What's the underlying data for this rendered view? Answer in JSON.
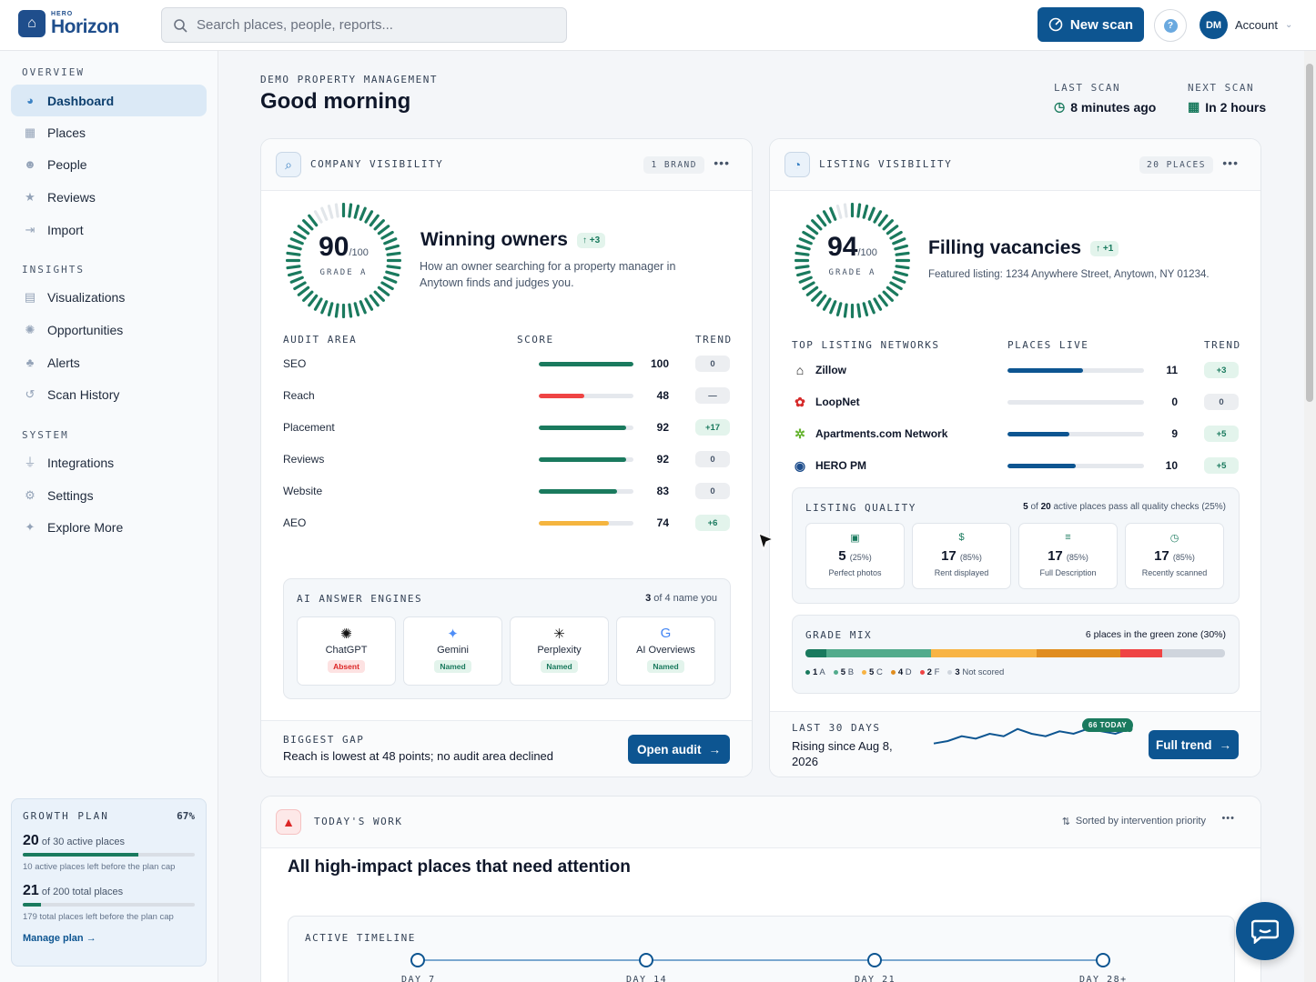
{
  "app": {
    "brand_small": "HERO",
    "brand_big": "Horizon"
  },
  "search": {
    "placeholder": "Search places, people, reports..."
  },
  "header": {
    "new_scan": "New scan",
    "help": "?",
    "avatar": "DM",
    "account": "Account"
  },
  "sidebar": {
    "sections": {
      "overview": "OVERVIEW",
      "insights": "INSIGHTS",
      "system": "SYSTEM"
    },
    "items": {
      "dashboard": "Dashboard",
      "places": "Places",
      "people": "People",
      "reviews": "Reviews",
      "import": "Import",
      "visualizations": "Visualizations",
      "opportunities": "Opportunities",
      "alerts": "Alerts",
      "scan_history": "Scan History",
      "integrations": "Integrations",
      "settings": "Settings",
      "explore_more": "Explore More"
    },
    "growth": {
      "title": "GROWTH PLAN",
      "percent": "67%",
      "active_num": "20",
      "active_text": "of 30 active places",
      "active_fill": 0.67,
      "active_sub": "10 active places left before the plan cap",
      "total_num": "21",
      "total_text": "of 200 total places",
      "total_fill": 0.105,
      "total_sub": "179 total places left before the plan cap",
      "manage": "Manage plan"
    }
  },
  "page": {
    "crumb": "DEMO PROPERTY MANAGEMENT",
    "greeting": "Good morning",
    "last_scan_label": "LAST SCAN",
    "last_scan_value": "8 minutes ago",
    "next_scan_label": "NEXT SCAN",
    "next_scan_value": "In 2 hours"
  },
  "company": {
    "title": "COMPANY VISIBILITY",
    "badge": "1 BRAND",
    "score": "90",
    "of": "/100",
    "grade": "GRADE A",
    "ring_fill": 0.9,
    "headline": "Winning owners",
    "delta": "+3",
    "desc": "How an owner searching for a property manager in Anytown finds and judges you.",
    "col_area": "AUDIT AREA",
    "col_score": "SCORE",
    "col_trend": "TREND",
    "areas": [
      {
        "label": "SEO",
        "value": 100,
        "trend": "0",
        "color": "#1a7a5e",
        "pos": false
      },
      {
        "label": "Reach",
        "value": 48,
        "trend": "—",
        "color": "#ef4444",
        "pos": false
      },
      {
        "label": "Placement",
        "value": 92,
        "trend": "+17",
        "color": "#1a7a5e",
        "pos": true
      },
      {
        "label": "Reviews",
        "value": 92,
        "trend": "0",
        "color": "#1a7a5e",
        "pos": false
      },
      {
        "label": "Website",
        "value": 83,
        "trend": "0",
        "color": "#1a7a5e",
        "pos": false
      },
      {
        "label": "AEO",
        "value": 74,
        "trend": "+6",
        "color": "#f5b53f",
        "pos": true
      }
    ],
    "ai_title": "AI ANSWER ENGINES",
    "ai_count": "3",
    "ai_count_text": "of 4 name you",
    "engines": [
      {
        "name": "ChatGPT",
        "status": "Absent",
        "icon": "✺"
      },
      {
        "name": "Gemini",
        "status": "Named",
        "icon": "✦"
      },
      {
        "name": "Perplexity",
        "status": "Named",
        "icon": "✳"
      },
      {
        "name": "AI Overviews",
        "status": "Named",
        "icon": "G"
      }
    ],
    "gap_label": "BIGGEST GAP",
    "gap_text": "Reach is lowest at 48 points; no audit area declined",
    "open_audit": "Open audit"
  },
  "listing": {
    "title": "LISTING VISIBILITY",
    "badge": "20 PLACES",
    "score": "94",
    "of": "/100",
    "grade": "GRADE A",
    "ring_fill": 0.94,
    "headline": "Filling vacancies",
    "delta": "+1",
    "desc": "Featured listing: 1234 Anywhere Street, Anytown, NY 01234.",
    "col_net": "TOP LISTING NETWORKS",
    "col_live": "PLACES LIVE",
    "col_trend": "TREND",
    "networks": [
      {
        "name": "Zillow",
        "value": 11,
        "trend": "+3",
        "pos": true
      },
      {
        "name": "LoopNet",
        "value": 0,
        "trend": "0",
        "pos": false
      },
      {
        "name": "Apartments.com Network",
        "value": 9,
        "trend": "+5",
        "pos": true
      },
      {
        "name": "HERO PM",
        "value": 10,
        "trend": "+5",
        "pos": true
      }
    ],
    "quality_title": "LISTING QUALITY",
    "quality_pass": "5",
    "quality_of": "of",
    "quality_total": "20",
    "quality_text": "active places pass all quality checks (25%)",
    "quality": [
      {
        "num": "5",
        "pct": "(25%)",
        "label": "Perfect photos",
        "icon": "▣"
      },
      {
        "num": "17",
        "pct": "(85%)",
        "label": "Rent displayed",
        "icon": "$"
      },
      {
        "num": "17",
        "pct": "(85%)",
        "label": "Full Description",
        "icon": "≡"
      },
      {
        "num": "17",
        "pct": "(85%)",
        "label": "Recently scanned",
        "icon": "◷"
      }
    ],
    "mix_title": "GRADE MIX",
    "mix_text": "6 places in the green zone (30%)",
    "mix": [
      {
        "label": "A",
        "count": 1,
        "color": "#1a7a5e"
      },
      {
        "label": "B",
        "count": 5,
        "color": "#52ab8c"
      },
      {
        "label": "C",
        "count": 5,
        "color": "#f8b444"
      },
      {
        "label": "D",
        "count": 4,
        "color": "#e08d1f"
      },
      {
        "label": "F",
        "count": 2,
        "color": "#ef4444"
      },
      {
        "label": "Not scored",
        "count": 3,
        "color": "#cfd5dd"
      }
    ],
    "last30_label": "LAST 30 DAYS",
    "last30_text": "Rising since Aug 8, 2026",
    "today_badge": "66 TODAY",
    "trend": [
      60,
      61,
      63,
      62,
      64,
      63,
      66,
      64,
      63,
      65,
      64,
      66,
      65,
      64,
      66
    ],
    "full_trend": "Full trend"
  },
  "work": {
    "title": "TODAY'S WORK",
    "sort": "Sorted by intervention priority",
    "headline": "All high-impact places that need attention",
    "timeline_title": "ACTIVE TIMELINE",
    "timeline": [
      "DAY 7",
      "DAY 14",
      "DAY 21",
      "DAY 28+"
    ]
  }
}
